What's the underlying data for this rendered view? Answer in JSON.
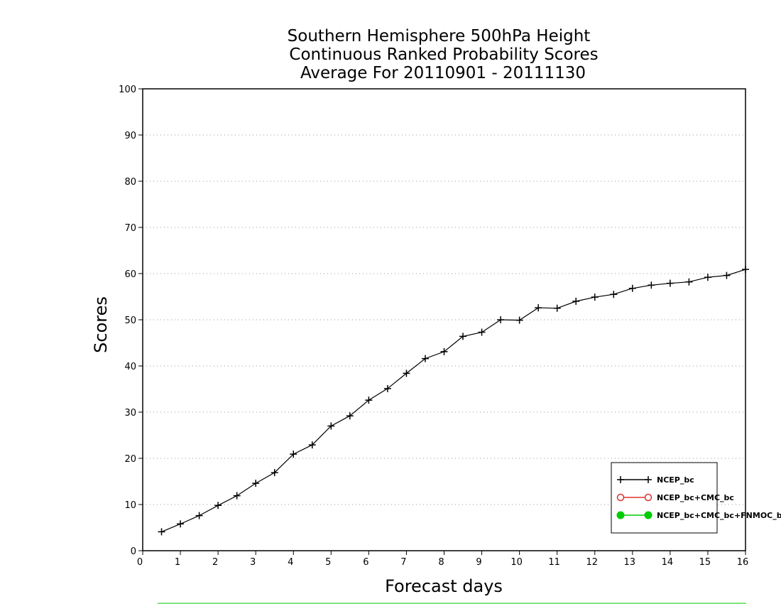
{
  "chart_data": {
    "type": "line",
    "title": [
      "Southern Hemisphere 500hPa Height",
      "Continuous Ranked Probability Scores",
      "Average For 20110901 - 20111130"
    ],
    "xlabel": "Forecast days",
    "ylabel": "Scores",
    "xlim": [
      0,
      16
    ],
    "ylim": [
      0,
      100
    ],
    "xticks": [
      0,
      1,
      2,
      3,
      4,
      5,
      6,
      7,
      8,
      9,
      10,
      11,
      12,
      13,
      14,
      15,
      16
    ],
    "yticks": [
      0,
      10,
      20,
      30,
      40,
      50,
      60,
      70,
      80,
      90,
      100
    ],
    "grid": "horizontal dotted",
    "legend_position": "bottom-right",
    "series": [
      {
        "name": "NCEP_bc",
        "color": "#000000",
        "marker": "plus",
        "x": [
          0.5,
          1.0,
          1.5,
          2.0,
          2.5,
          3.0,
          3.5,
          4.0,
          4.5,
          5.0,
          5.5,
          6.0,
          6.5,
          7.0,
          7.5,
          8.0,
          8.5,
          9.0,
          9.5,
          10.0,
          10.5,
          11.0,
          11.5,
          12.0,
          12.5,
          13.0,
          13.5,
          14.0,
          14.5,
          15.0,
          15.5,
          16.0
        ],
        "y": [
          4.1,
          5.8,
          7.6,
          9.8,
          11.9,
          14.6,
          16.9,
          20.9,
          22.9,
          27.0,
          29.2,
          32.6,
          35.1,
          38.4,
          41.6,
          43.1,
          46.4,
          47.3,
          50.0,
          49.9,
          52.6,
          52.5,
          54.0,
          54.9,
          55.5,
          56.8,
          57.5,
          57.9,
          58.2,
          59.2,
          59.6,
          60.9
        ]
      },
      {
        "name": "NCEP_bc+CMC_bc",
        "color": "#e03030",
        "marker": "open-circle",
        "x": [],
        "y": []
      },
      {
        "name": "NCEP_bc+CMC_bc+FNMOC_bc",
        "color": "#00cc00",
        "marker": "filled-circle",
        "x": [],
        "y": []
      }
    ]
  }
}
